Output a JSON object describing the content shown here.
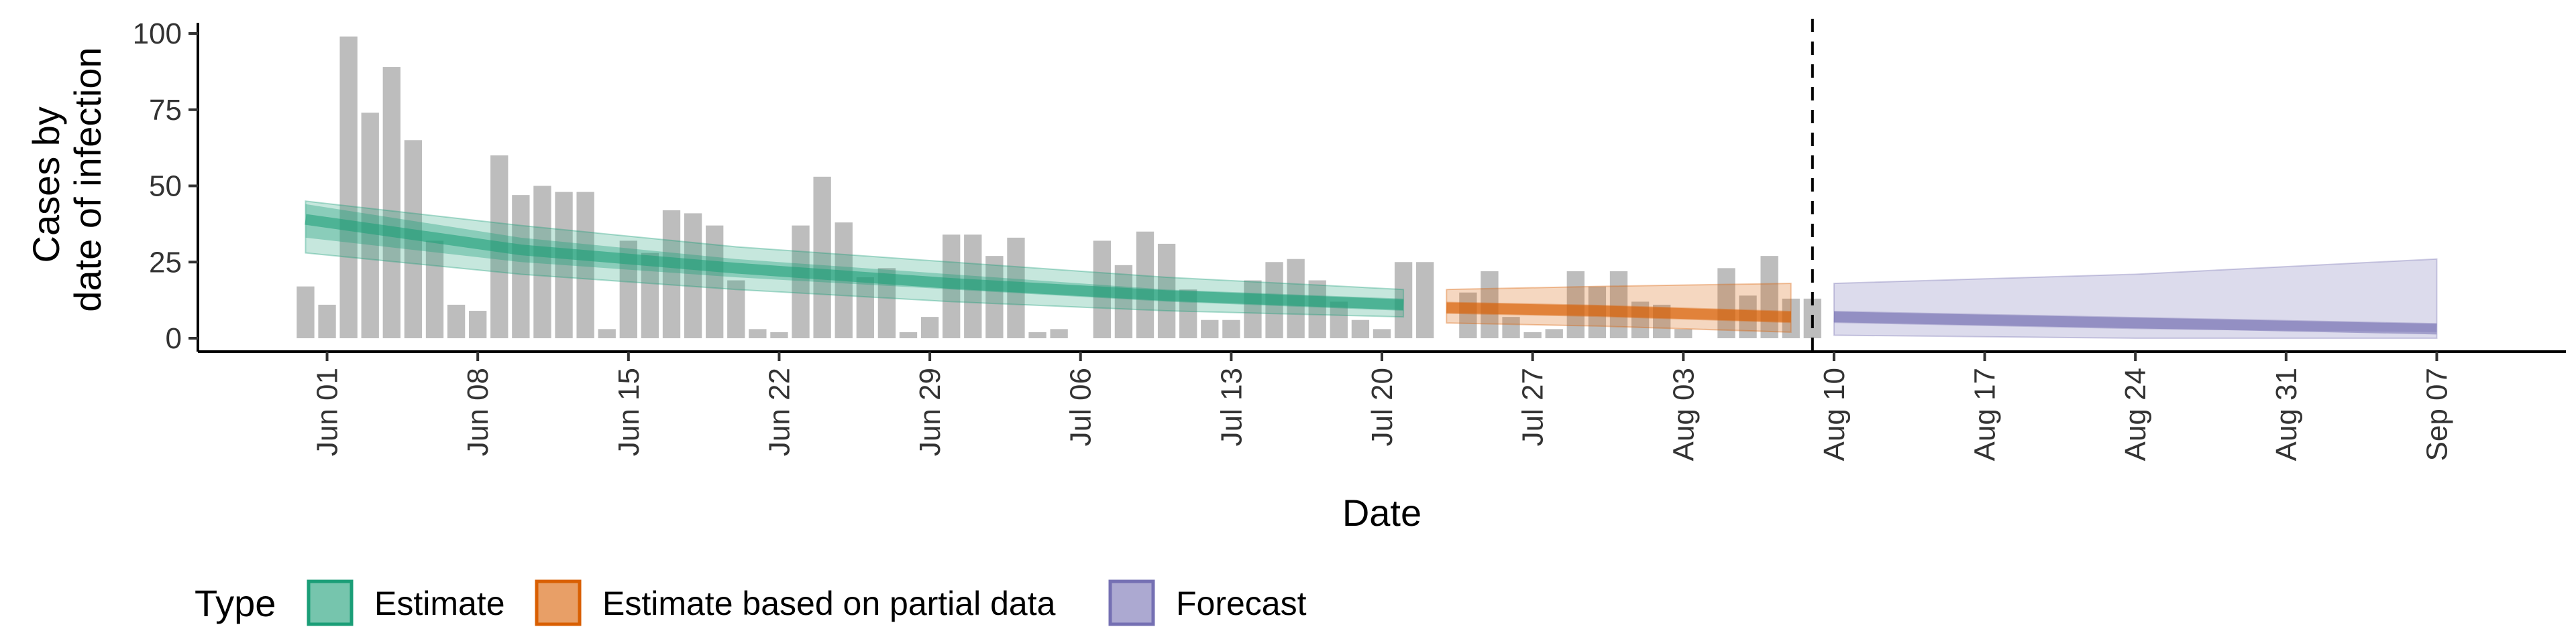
{
  "chart_data": {
    "type": "bar",
    "xlabel": "Date",
    "ylabel_lines": [
      "Cases by",
      "date of infection"
    ],
    "ylim": [
      0,
      100
    ],
    "yticks": [
      0,
      25,
      50,
      75,
      100
    ],
    "xlim": [
      "2021-05-26",
      "2021-09-13"
    ],
    "xtick_dates": [
      "2021-06-01",
      "2021-06-08",
      "2021-06-15",
      "2021-06-22",
      "2021-06-29",
      "2021-07-06",
      "2021-07-13",
      "2021-07-20",
      "2021-07-27",
      "2021-08-03",
      "2021-08-10",
      "2021-08-17",
      "2021-08-24",
      "2021-08-31",
      "2021-09-07"
    ],
    "xtick_labels": [
      "Jun 01",
      "Jun 08",
      "Jun 15",
      "Jun 22",
      "Jun 29",
      "Jul 06",
      "Jul 13",
      "Jul 20",
      "Jul 27",
      "Aug 03",
      "Aug 10",
      "Aug 17",
      "Aug 24",
      "Aug 31",
      "Sep 07"
    ],
    "reported_cases": {
      "start_date": "2021-05-31",
      "color": "#bdbdbd",
      "values": [
        17,
        11,
        99,
        74,
        89,
        65,
        32,
        11,
        9,
        60,
        47,
        50,
        48,
        48,
        3,
        32,
        28,
        42,
        41,
        37,
        19,
        3,
        2,
        37,
        53,
        38,
        20,
        23,
        2,
        7,
        34,
        34,
        27,
        33,
        2,
        3,
        0,
        32,
        24,
        35,
        31,
        16,
        6,
        6,
        19,
        25,
        26,
        19,
        12,
        6,
        3,
        25,
        25,
        0,
        15,
        22,
        7,
        2,
        3,
        22,
        17,
        22,
        12,
        11,
        3,
        0,
        23,
        14,
        27,
        13,
        13
      ]
    },
    "vertical_line_date": "2021-08-09",
    "series": [
      {
        "name": "Estimate",
        "color": "#1b9e77",
        "points": [
          {
            "date": "2021-05-31",
            "median": 39,
            "lower_inner": 33,
            "upper_inner": 44,
            "lower_outer": 28,
            "upper_outer": 45
          },
          {
            "date": "2021-06-10",
            "median": 29,
            "lower_inner": 25,
            "upper_inner": 33,
            "lower_outer": 21,
            "upper_outer": 37
          },
          {
            "date": "2021-06-20",
            "median": 23,
            "lower_inner": 20,
            "upper_inner": 26,
            "lower_outer": 16,
            "upper_outer": 30
          },
          {
            "date": "2021-06-30",
            "median": 18,
            "lower_inner": 16,
            "upper_inner": 21,
            "lower_outer": 12,
            "upper_outer": 25
          },
          {
            "date": "2021-07-10",
            "median": 14,
            "lower_inner": 12,
            "upper_inner": 16,
            "lower_outer": 9,
            "upper_outer": 20
          },
          {
            "date": "2021-07-21",
            "median": 11,
            "lower_inner": 9,
            "upper_inner": 13,
            "lower_outer": 7,
            "upper_outer": 16
          }
        ]
      },
      {
        "name": "Estimate based on partial data",
        "color": "#d95f02",
        "points": [
          {
            "date": "2021-07-23",
            "median": 10,
            "lower_inner": 8,
            "upper_inner": 12,
            "lower_outer": 5,
            "upper_outer": 16
          },
          {
            "date": "2021-07-30",
            "median": 9,
            "lower_inner": 7,
            "upper_inner": 11,
            "lower_outer": 4,
            "upper_outer": 17
          },
          {
            "date": "2021-08-08",
            "median": 7,
            "lower_inner": 5,
            "upper_inner": 9,
            "lower_outer": 2,
            "upper_outer": 18
          }
        ]
      },
      {
        "name": "Forecast",
        "color": "#7570b3",
        "points": [
          {
            "date": "2021-08-10",
            "median": 7,
            "lower_inner": 5,
            "upper_inner": 9,
            "lower_outer": 1,
            "upper_outer": 18
          },
          {
            "date": "2021-08-24",
            "median": 5,
            "lower_inner": 3,
            "upper_inner": 7,
            "lower_outer": 0,
            "upper_outer": 21
          },
          {
            "date": "2021-09-07",
            "median": 3,
            "lower_inner": 2,
            "upper_inner": 5,
            "lower_outer": 0,
            "upper_outer": 26
          }
        ]
      }
    ],
    "legend": {
      "title": "Type",
      "position": "bottom",
      "items": [
        "Estimate",
        "Estimate based on partial data",
        "Forecast"
      ]
    }
  }
}
